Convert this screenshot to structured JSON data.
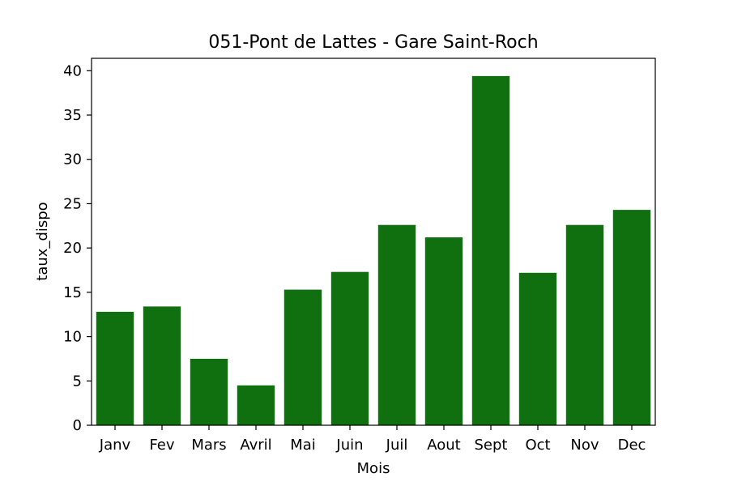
{
  "chart_data": {
    "type": "bar",
    "title": "051-Pont de Lattes - Gare Saint-Roch",
    "xlabel": "Mois",
    "ylabel": "taux_dispo",
    "categories": [
      "Janv",
      "Fev",
      "Mars",
      "Avril",
      "Mai",
      "Juin",
      "Juil",
      "Aout",
      "Sept",
      "Oct",
      "Nov",
      "Dec"
    ],
    "values": [
      12.8,
      13.4,
      7.5,
      4.5,
      15.3,
      17.3,
      22.6,
      21.2,
      39.4,
      17.2,
      22.6,
      24.3
    ],
    "ylim": [
      0,
      41.4
    ],
    "yticks": [
      0,
      5,
      10,
      15,
      20,
      25,
      30,
      35,
      40
    ],
    "bar_color": "#107010",
    "grid": false,
    "legend": "none"
  }
}
